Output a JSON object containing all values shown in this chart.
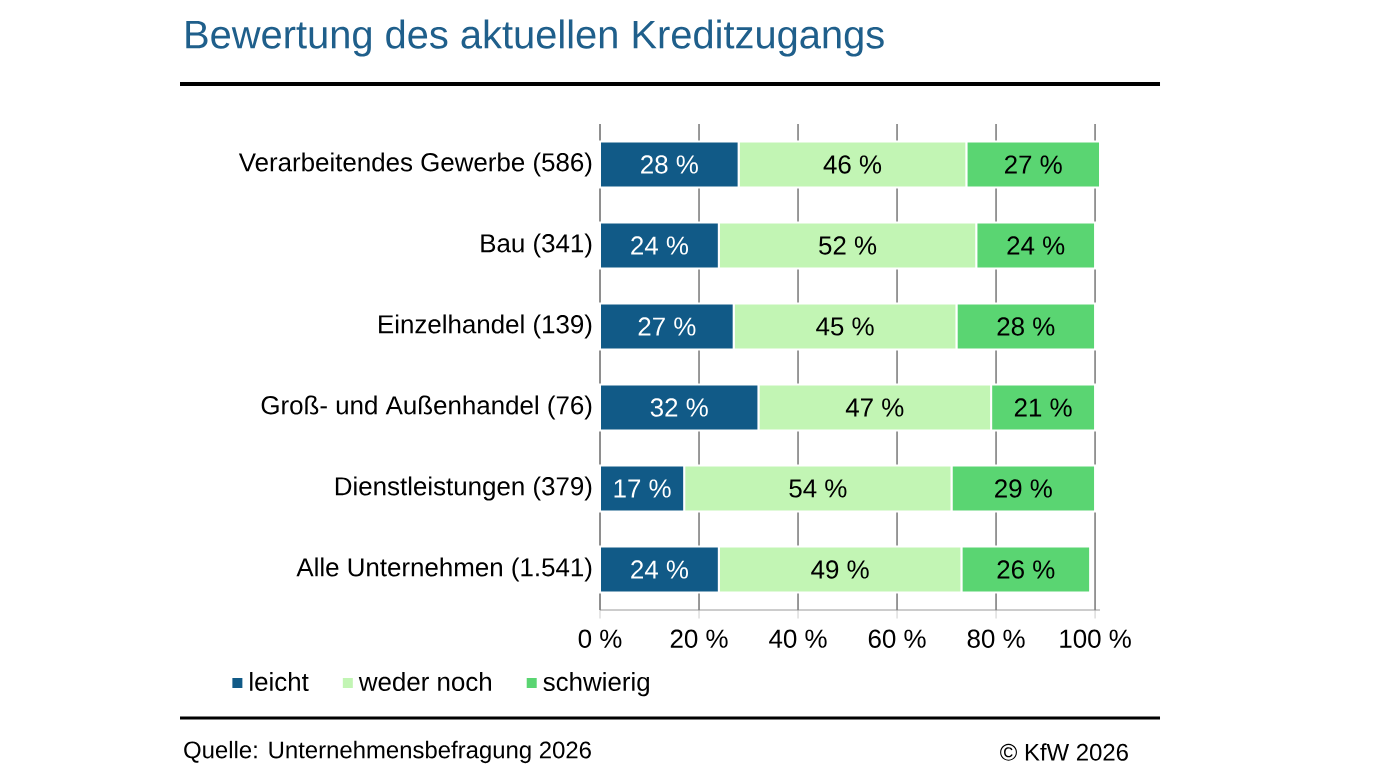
{
  "chart_data": {
    "type": "bar",
    "orientation": "horizontal",
    "stacked": true,
    "title": "Bewertung des aktuellen Kreditzugangs",
    "categories": [
      "Verarbeitendes Gewerbe (586)",
      "Bau (341)",
      "Einzelhandel (139)",
      "Groß- und Außenhandel (76)",
      "Dienstleistungen (379)",
      "Alle Unternehmen (1.541)"
    ],
    "series": [
      {
        "name": "leicht",
        "color": "#115a87",
        "values": [
          28,
          24,
          27,
          32,
          17,
          24
        ],
        "value_labels": [
          "28 %",
          "24 %",
          "27 %",
          "32 %",
          "17 %",
          "24 %"
        ]
      },
      {
        "name": "weder noch",
        "color": "#c2f5b4",
        "values": [
          46,
          52,
          45,
          47,
          54,
          49
        ],
        "value_labels": [
          "46 %",
          "52 %",
          "45 %",
          "47 %",
          "54 %",
          "49 %"
        ]
      },
      {
        "name": "schwierig",
        "color": "#5ad572",
        "values": [
          27,
          24,
          28,
          21,
          29,
          26
        ],
        "value_labels": [
          "27 %",
          "24 %",
          "28 %",
          "21 %",
          "29 %",
          "26 %"
        ]
      }
    ],
    "xlim": [
      0,
      101
    ],
    "xticks": [
      {
        "value": 0,
        "label": "0 %"
      },
      {
        "value": 20,
        "label": "20 %"
      },
      {
        "value": 40,
        "label": "40 %"
      },
      {
        "value": 60,
        "label": "60 %"
      },
      {
        "value": 80,
        "label": "80 %"
      },
      {
        "value": 100,
        "label": "100 %"
      }
    ],
    "grid": "x",
    "legend": "bottom",
    "annotations": [
      "Quelle: Unternehmensbefragung 2026",
      "© KfW 2026"
    ]
  }
}
